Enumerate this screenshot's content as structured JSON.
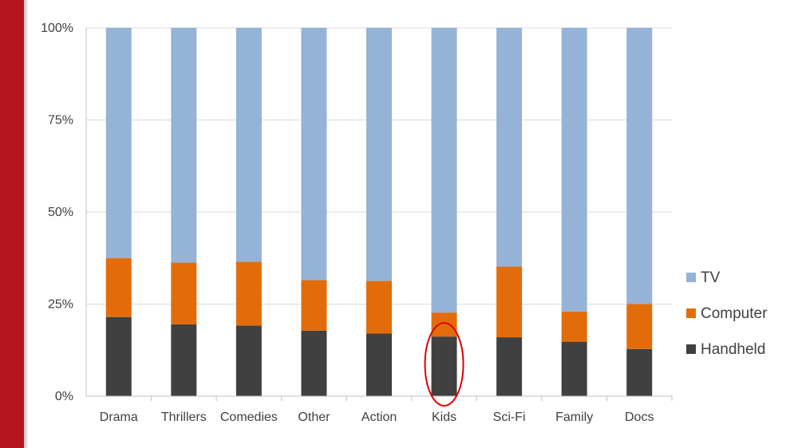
{
  "chart_data": {
    "type": "bar",
    "stacked": true,
    "percent_stacked": true,
    "categories": [
      "Drama",
      "Thrillers",
      "Comedies",
      "Other",
      "Action",
      "Kids",
      "Sci-Fi",
      "Family",
      "Docs"
    ],
    "series": [
      {
        "name": "Handheld",
        "color": "#404040",
        "values": [
          21.5,
          19.5,
          19.2,
          17.8,
          17.0,
          16.2,
          16.0,
          14.8,
          12.8
        ]
      },
      {
        "name": "Computer",
        "color": "#e36c0a",
        "values": [
          16.0,
          16.8,
          17.3,
          13.7,
          14.3,
          6.5,
          19.2,
          8.2,
          12.2
        ]
      },
      {
        "name": "TV",
        "color": "#95b3d7",
        "values": [
          62.5,
          63.7,
          63.5,
          68.5,
          68.7,
          77.3,
          64.8,
          77.0,
          75.0
        ]
      }
    ],
    "y_ticks": [
      "0%",
      "25%",
      "50%",
      "75%",
      "100%"
    ],
    "ylim": [
      0,
      100
    ],
    "grid": true,
    "legend_position": "right",
    "legend_order": [
      "TV",
      "Computer",
      "Handheld"
    ],
    "highlight": {
      "category": "Kids",
      "shape": "ellipse",
      "color": "#e00000"
    }
  }
}
